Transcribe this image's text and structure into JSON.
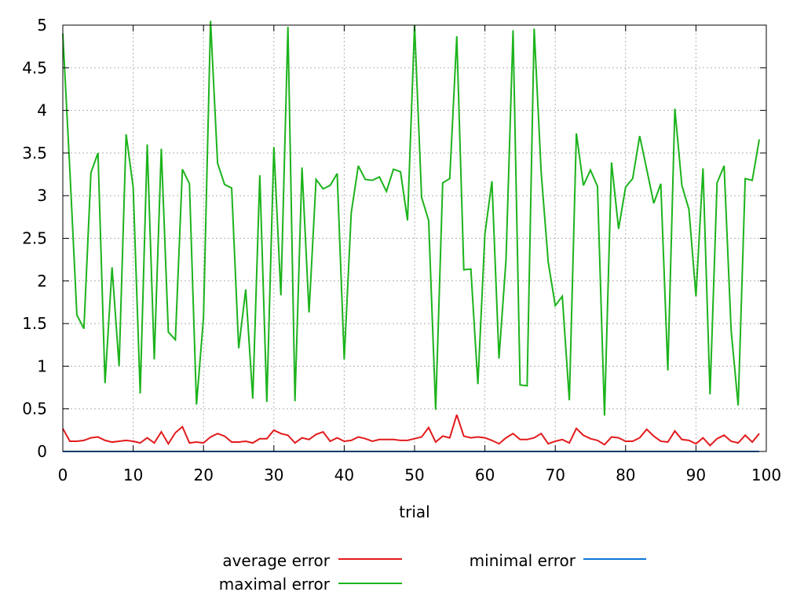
{
  "chart_data": {
    "type": "line",
    "xlabel": "trial",
    "ylabel": "",
    "xlim": [
      0,
      100
    ],
    "ylim": [
      0,
      5
    ],
    "xticks": [
      "0",
      "10",
      "20",
      "30",
      "40",
      "50",
      "60",
      "70",
      "80",
      "90",
      "100"
    ],
    "yticks": [
      "0",
      "0.5",
      "1",
      "1.5",
      "2",
      "2.5",
      "3",
      "3.5",
      "4",
      "4.5",
      "5"
    ],
    "grid": true,
    "legend_position": "bottom",
    "x": [
      0,
      1,
      2,
      3,
      4,
      5,
      6,
      7,
      8,
      9,
      10,
      11,
      12,
      13,
      14,
      15,
      16,
      17,
      18,
      19,
      20,
      21,
      22,
      23,
      24,
      25,
      26,
      27,
      28,
      29,
      30,
      31,
      32,
      33,
      34,
      35,
      36,
      37,
      38,
      39,
      40,
      41,
      42,
      43,
      44,
      45,
      46,
      47,
      48,
      49,
      50,
      51,
      52,
      53,
      54,
      55,
      56,
      57,
      58,
      59,
      60,
      61,
      62,
      63,
      64,
      65,
      66,
      67,
      68,
      69,
      70,
      71,
      72,
      73,
      74,
      75,
      76,
      77,
      78,
      79,
      80,
      81,
      82,
      83,
      84,
      85,
      86,
      87,
      88,
      89,
      90,
      91,
      92,
      93,
      94,
      95,
      96,
      97,
      98,
      99
    ],
    "series": [
      {
        "name": "average error",
        "color": "#e31a1c",
        "values": [
          0.27,
          0.12,
          0.12,
          0.13,
          0.16,
          0.17,
          0.13,
          0.11,
          0.12,
          0.13,
          0.12,
          0.1,
          0.16,
          0.1,
          0.23,
          0.09,
          0.22,
          0.29,
          0.1,
          0.11,
          0.1,
          0.17,
          0.21,
          0.18,
          0.11,
          0.11,
          0.12,
          0.1,
          0.15,
          0.15,
          0.25,
          0.21,
          0.19,
          0.1,
          0.16,
          0.14,
          0.2,
          0.23,
          0.12,
          0.16,
          0.12,
          0.13,
          0.17,
          0.15,
          0.12,
          0.14,
          0.14,
          0.14,
          0.13,
          0.13,
          0.15,
          0.17,
          0.28,
          0.11,
          0.18,
          0.16,
          0.43,
          0.18,
          0.16,
          0.17,
          0.16,
          0.13,
          0.09,
          0.16,
          0.21,
          0.14,
          0.14,
          0.16,
          0.21,
          0.09,
          0.12,
          0.14,
          0.1,
          0.27,
          0.19,
          0.15,
          0.13,
          0.08,
          0.17,
          0.16,
          0.12,
          0.12,
          0.16,
          0.26,
          0.18,
          0.12,
          0.11,
          0.24,
          0.14,
          0.13,
          0.09,
          0.16,
          0.07,
          0.15,
          0.19,
          0.12,
          0.1,
          0.19,
          0.11,
          0.21
        ]
      },
      {
        "name": "maximal error",
        "color": "#1cb31c",
        "values": [
          4.9,
          3.3,
          1.6,
          1.44,
          3.27,
          3.5,
          0.8,
          2.16,
          1.0,
          3.72,
          3.1,
          0.68,
          3.6,
          1.08,
          3.55,
          1.4,
          1.31,
          3.31,
          3.14,
          0.55,
          1.57,
          5.05,
          3.38,
          3.13,
          3.09,
          1.21,
          1.9,
          0.62,
          3.24,
          0.58,
          3.57,
          1.83,
          4.98,
          0.59,
          3.33,
          1.63,
          3.19,
          3.08,
          3.12,
          3.26,
          1.08,
          2.8,
          3.35,
          3.19,
          3.18,
          3.22,
          3.05,
          3.31,
          3.28,
          2.71,
          5.0,
          2.98,
          2.71,
          0.49,
          3.15,
          3.2,
          4.87,
          2.13,
          2.14,
          0.79,
          2.55,
          3.17,
          1.09,
          2.25,
          4.94,
          0.78,
          0.77,
          4.96,
          3.27,
          2.22,
          1.71,
          1.82,
          0.6,
          3.73,
          3.12,
          3.3,
          3.11,
          0.42,
          3.39,
          2.61,
          3.1,
          3.2,
          3.7,
          3.31,
          2.91,
          3.14,
          0.95,
          4.02,
          3.12,
          2.84,
          1.82,
          3.32,
          0.67,
          3.15,
          3.35,
          1.42,
          0.54,
          3.2,
          3.18,
          3.66
        ]
      },
      {
        "name": "minimal error",
        "color": "#0b76d4",
        "values": [
          0,
          0,
          0,
          0,
          0,
          0,
          0,
          0,
          0,
          0,
          0,
          0,
          0,
          0,
          0,
          0,
          0,
          0,
          0,
          0,
          0,
          0,
          0,
          0,
          0,
          0,
          0,
          0,
          0,
          0,
          0,
          0,
          0,
          0,
          0,
          0,
          0,
          0,
          0,
          0,
          0,
          0,
          0,
          0,
          0,
          0,
          0,
          0,
          0,
          0,
          0,
          0,
          0,
          0,
          0,
          0,
          0,
          0,
          0,
          0,
          0,
          0,
          0,
          0,
          0,
          0,
          0,
          0,
          0,
          0,
          0,
          0,
          0,
          0,
          0,
          0,
          0,
          0,
          0,
          0,
          0,
          0,
          0,
          0,
          0,
          0,
          0,
          0,
          0,
          0,
          0,
          0,
          0,
          0,
          0,
          0,
          0,
          0,
          0,
          0
        ]
      }
    ]
  }
}
